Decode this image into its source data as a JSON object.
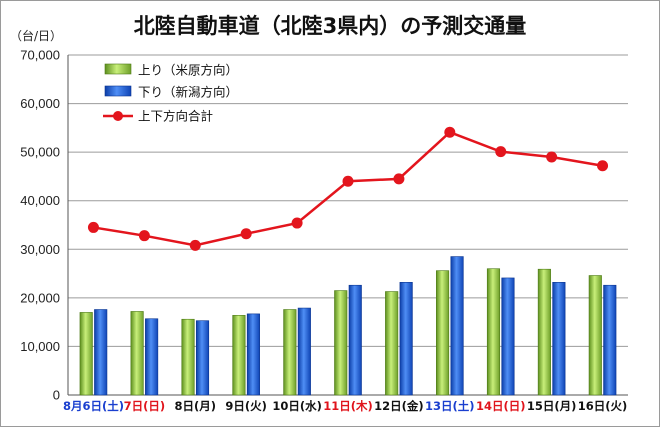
{
  "chart_data": {
    "type": "bar",
    "title": "北陸自動車道（北陸3県内）の予測交通量",
    "ylabel": "（台/日）",
    "ylim": [
      0,
      70000
    ],
    "yticks": [
      "0",
      "10,000",
      "20,000",
      "30,000",
      "40,000",
      "50,000",
      "60,000",
      "70,000"
    ],
    "grid": true,
    "legend_position": "top-left",
    "categories": [
      "8月6日(土)",
      "7日(日)",
      "8日(月)",
      "9日(火)",
      "10日(水)",
      "11日(木)",
      "12日(金)",
      "13日(土)",
      "14日(日)",
      "15日(月)",
      "16日(火)"
    ],
    "category_colors": [
      "#1a3fcf",
      "#e0141c",
      "#111111",
      "#111111",
      "#111111",
      "#e0141c",
      "#111111",
      "#1a3fcf",
      "#e0141c",
      "#111111",
      "#111111"
    ],
    "series": [
      {
        "name": "上り（米原方向）",
        "type": "bar",
        "color": "#8dc63f",
        "values": [
          17000,
          17200,
          15600,
          16400,
          17600,
          21500,
          21300,
          25600,
          26000,
          25900,
          24600
        ]
      },
      {
        "name": "下り（新潟方向）",
        "type": "bar",
        "color": "#1d5fd6",
        "values": [
          17600,
          15700,
          15300,
          16700,
          17900,
          22600,
          23200,
          28500,
          24100,
          23200,
          22600
        ]
      },
      {
        "name": "上下方向合計",
        "type": "line",
        "color": "#e3151d",
        "values": [
          34500,
          32800,
          30800,
          33200,
          35400,
          44000,
          44500,
          54100,
          50100,
          49000,
          47200
        ]
      }
    ]
  }
}
